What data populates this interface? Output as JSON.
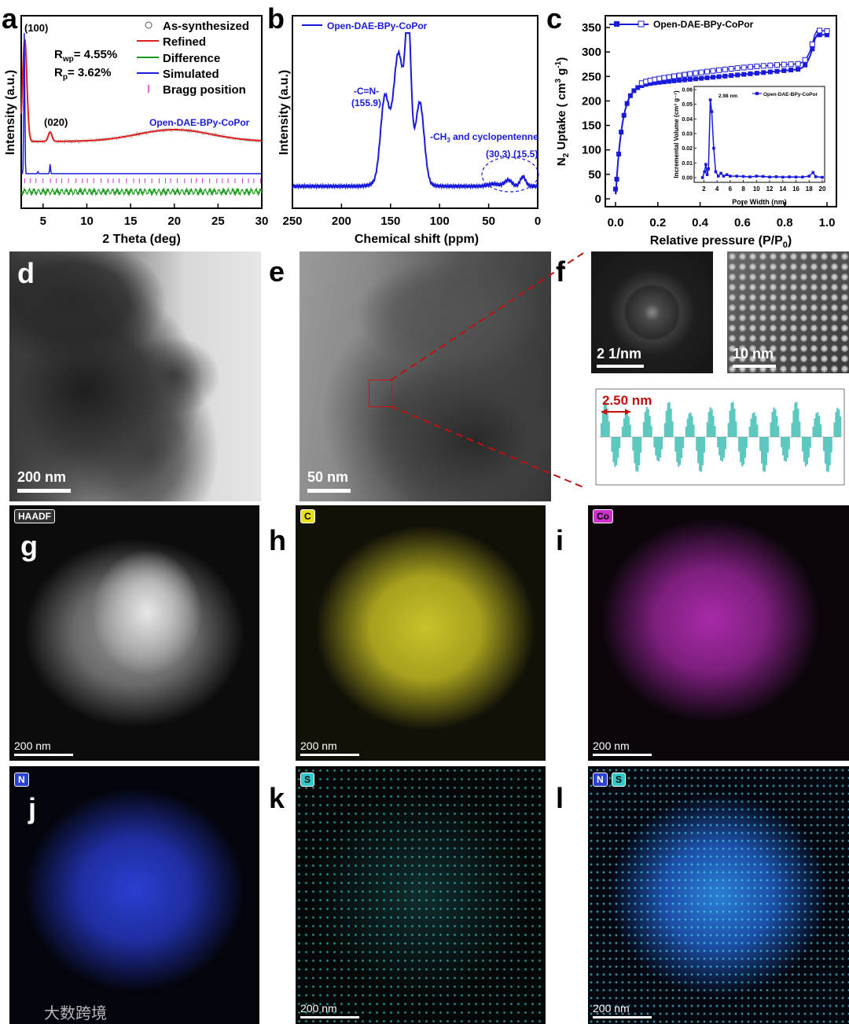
{
  "panels": {
    "a": {
      "label": "a",
      "peak1": "(100)",
      "peak2": "(020)",
      "rwp": "= 4.55%",
      "rp": "= 3.62%",
      "legend": [
        "As-synthesized",
        "Refined",
        "Difference",
        "Simulated",
        "Bragg position"
      ],
      "sample": "Open-DAE-BPy-CoPor",
      "xlabel": "2 Theta (deg)",
      "ylabel": "Intensity (a.u.)",
      "xticks": [
        "5",
        "10",
        "15",
        "20",
        "25",
        "30"
      ]
    },
    "b": {
      "label": "b",
      "legend": "Open-DAE-BPy-CoPor",
      "ann1": "-C=N-",
      "ann1b": "(155.9)",
      "ann2": "-CH",
      "ann2sub": "3",
      "ann2b": " and cyclopentenne",
      "ann3": "(30.3)",
      "ann4": "(15.5)",
      "xlabel": "Chemical shift (ppm)",
      "ylabel": "Intensity (a.u.)",
      "xticks": [
        "250",
        "200",
        "150",
        "100",
        "50",
        "0"
      ]
    },
    "c": {
      "label": "c",
      "legend": "Open-DAE-BPy-CoPor",
      "xlabel": "Relative pressure (P/P",
      "xlabel_sub": "0",
      "ylabel_pre": "N",
      "ylabel_sub": "2",
      "ylabel_post": " Uptake ( cm",
      "ylabel_sup": "3",
      "ylabel_g": " g",
      "ylabel_gsup": "-1",
      "ylabel_end": ")",
      "xticks": [
        "0.0",
        "0.2",
        "0.4",
        "0.6",
        "0.8",
        "1.0"
      ],
      "yticks": [
        "0",
        "50",
        "100",
        "150",
        "200",
        "250",
        "300",
        "350"
      ],
      "inset": {
        "legend": "Open-DAE-BPy-CoPor",
        "peak": "2.98 nm",
        "xlabel": "Pore Width (nm)",
        "ylabel": "Incremental Volume (cm³ g⁻¹)",
        "xticks": [
          "2",
          "4",
          "6",
          "8",
          "10",
          "12",
          "14",
          "16",
          "18",
          "20"
        ],
        "yticks": [
          "0.00",
          "0.01",
          "0.02",
          "0.03",
          "0.04",
          "0.05",
          "0.06"
        ]
      }
    },
    "d": {
      "label": "d",
      "scale": "200 nm"
    },
    "e": {
      "label": "e",
      "scale": "50 nm"
    },
    "f": {
      "label": "f",
      "fft_scale": "2 1/nm",
      "hr_scale": "10 nm",
      "spacing": "2.50 nm"
    },
    "g": {
      "label": "g",
      "tag": "HAADF",
      "scale": "200 nm"
    },
    "h": {
      "label": "h",
      "tag": "C",
      "scale": "200 nm"
    },
    "i": {
      "label": "i",
      "tag": "Co",
      "scale": "200 nm"
    },
    "j": {
      "label": "j",
      "tag": "N",
      "scale": ""
    },
    "k": {
      "label": "k",
      "tag": "S",
      "scale": "200 nm"
    },
    "l": {
      "label": "l",
      "tag1": "N",
      "tag2": "S",
      "scale": "200 nm"
    }
  },
  "colors": {
    "blue": "#1a1adc",
    "red": "#e0201e",
    "green": "#1a9a1a",
    "magenta": "#cc33cc",
    "yellow": "#e6e020",
    "carbon": "#b5b020",
    "cobalt": "#b030b0",
    "nitrogen": "#2a40d0",
    "sulfur": "#30c8c8"
  },
  "watermark": "大数跨境"
}
